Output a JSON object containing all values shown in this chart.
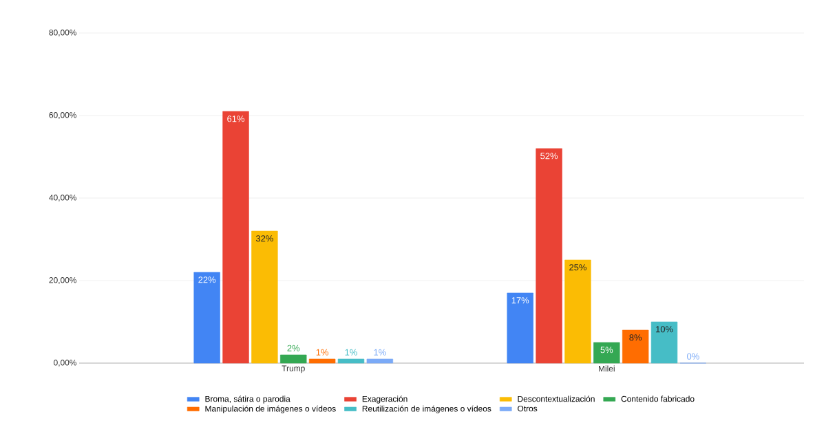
{
  "chart_data": {
    "type": "bar",
    "categories": [
      "Trump",
      "Milei"
    ],
    "series": [
      {
        "name": "Broma, sátira o parodia",
        "color": "#4285f4",
        "values": [
          22,
          17
        ],
        "value_labels": [
          "22%",
          "17%"
        ]
      },
      {
        "name": "Exageración",
        "color": "#ea4335",
        "values": [
          61,
          52
        ],
        "value_labels": [
          "61%",
          "52%"
        ]
      },
      {
        "name": "Descontextualización",
        "color": "#fbbc04",
        "values": [
          32,
          25
        ],
        "value_labels": [
          "32%",
          "25%"
        ]
      },
      {
        "name": "Contenido fabricado",
        "color": "#34a853",
        "values": [
          2,
          5
        ],
        "value_labels": [
          "2%",
          "5%"
        ]
      },
      {
        "name": "Manipulación de imágenes o vídeos",
        "color": "#ff6d01",
        "values": [
          1,
          8
        ],
        "value_labels": [
          "1%",
          "8%"
        ]
      },
      {
        "name": "Reutilización de imágenes o vídeos",
        "color": "#46bdc6",
        "values": [
          1,
          10
        ],
        "value_labels": [
          "1%",
          "10%"
        ]
      },
      {
        "name": "Otros",
        "color": "#7baaf7",
        "values": [
          1,
          0
        ],
        "value_labels": [
          "1%",
          "0%"
        ]
      }
    ],
    "ylim": [
      0,
      80
    ],
    "yticks": [
      {
        "value": 0,
        "label": "0,00%"
      },
      {
        "value": 20,
        "label": "20,00%"
      },
      {
        "value": 40,
        "label": "40,00%"
      },
      {
        "value": 60,
        "label": "60,00%"
      },
      {
        "value": 80,
        "label": "80,00%"
      }
    ],
    "grid": "y",
    "legend": "bottom"
  }
}
